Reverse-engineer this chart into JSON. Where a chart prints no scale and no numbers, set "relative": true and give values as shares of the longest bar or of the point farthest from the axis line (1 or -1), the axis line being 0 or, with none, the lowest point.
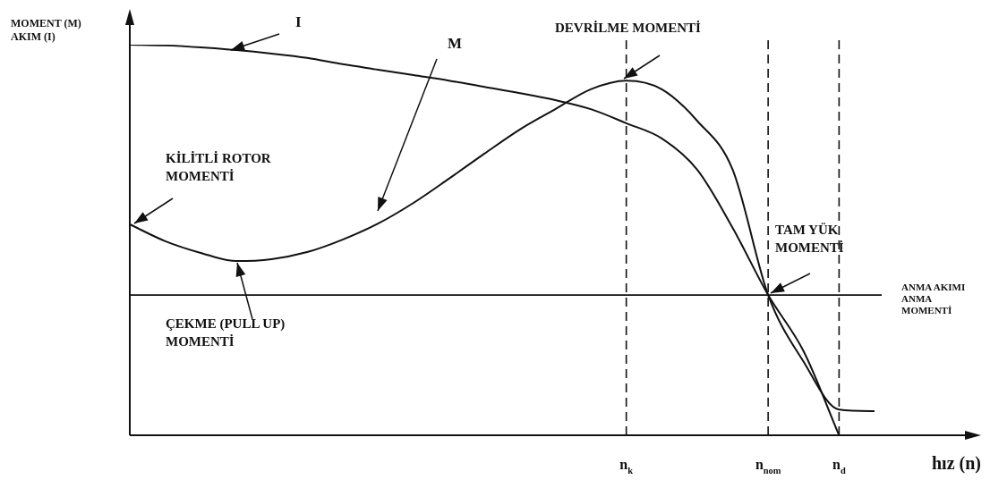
{
  "chart_data": {
    "type": "line",
    "relative": true,
    "ylabel": "MOMENT (M)\nAKIM (I)",
    "xlabel": "hız (n)",
    "legend": false,
    "grid": false,
    "marker": "none",
    "line_style": "solid",
    "categories": [
      null,
      null,
      null,
      null,
      null,
      null,
      null,
      null,
      null,
      null,
      null,
      null,
      null,
      null,
      "n$_{k}$",
      null,
      null,
      null,
      "n$_{nom}$",
      null,
      "n$_{d}$",
      null
    ],
    "series": [
      {
        "name": "I",
        "color": "#111111",
        "values": [
          1.0,
          0.998,
          0.993,
          0.986,
          0.977,
          0.966,
          0.95,
          0.936,
          0.922,
          0.908,
          0.892,
          0.876,
          0.858,
          0.835,
          0.799,
          0.76,
          0.68,
          0.531,
          0.359,
          0.215,
          0,
          null
        ]
      },
      {
        "name": "M",
        "color": "#111111",
        "values": [
          0.54,
          0.497,
          0.467,
          0.446,
          0.451,
          0.469,
          0.501,
          0.542,
          0.595,
          0.657,
          0.721,
          0.783,
          0.835,
          0.886,
          0.908,
          0.886,
          0.805,
          0.68,
          0.359,
          0.188,
          0.066,
          0.062
        ]
      }
    ],
    "ref_lines": [
      {
        "axis": "y",
        "value": 0.359,
        "label": "ANMA AKIMI\nANMA\nMOMENTİ",
        "line_style": "solid",
        "color": "#111111"
      },
      {
        "axis": "x",
        "value": "n$_{k}$",
        "line_style": "dashed",
        "color": "#111111"
      },
      {
        "axis": "x",
        "value": "n$_{nom}$",
        "line_style": "dashed",
        "color": "#111111"
      },
      {
        "axis": "x",
        "value": "n$_{d}$",
        "line_style": "dashed",
        "color": "#111111"
      }
    ],
    "annotations": [
      "KİLİTLİ ROTOR\nMOMENTİ",
      "ÇEKME (PULL UP)\nMOMENTİ",
      "DEVRİLME MOMENTİ",
      "TAM YÜK\nMOMENTİ"
    ]
  }
}
